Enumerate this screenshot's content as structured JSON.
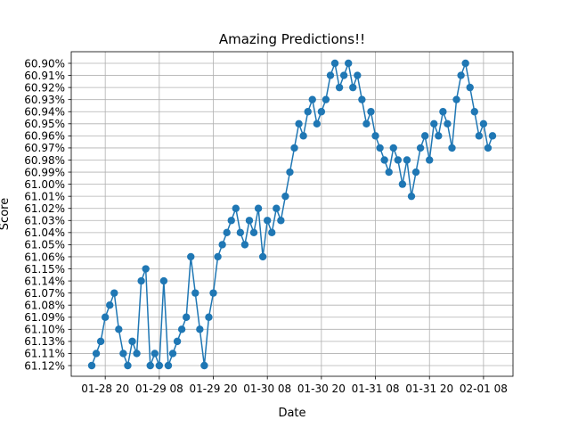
{
  "chart_data": {
    "type": "line",
    "title": "Amazing Predictions!!",
    "xlabel": "Date",
    "ylabel": "Score",
    "grid": true,
    "markers": "circle",
    "series_color": "#1f77b4",
    "y_categories": [
      "61.12%",
      "61.11%",
      "61.13%",
      "61.10%",
      "61.09%",
      "61.08%",
      "61.07%",
      "61.14%",
      "61.15%",
      "61.06%",
      "61.05%",
      "61.04%",
      "61.03%",
      "61.02%",
      "61.01%",
      "61.00%",
      "60.99%",
      "60.98%",
      "60.97%",
      "60.96%",
      "60.95%",
      "60.94%",
      "60.93%",
      "60.92%",
      "60.91%",
      "60.90%"
    ],
    "x_ticks": [
      "01-28 20",
      "01-29 08",
      "01-29 20",
      "01-30 08",
      "01-30 20",
      "01-31 08",
      "01-31 20",
      "02-01 08"
    ],
    "x_range": [
      "2020-01-28T17:00",
      "2020-02-01T10:00"
    ],
    "series": [
      {
        "values_by_hour": [
          [
            "2020-01-28T17:00",
            "61.12%"
          ],
          [
            "2020-01-28T18:00",
            "61.11%"
          ],
          [
            "2020-01-28T19:00",
            "61.13%"
          ],
          [
            "2020-01-28T20:00",
            "61.09%"
          ],
          [
            "2020-01-28T21:00",
            "61.08%"
          ],
          [
            "2020-01-28T22:00",
            "61.07%"
          ],
          [
            "2020-01-28T23:00",
            "61.10%"
          ],
          [
            "2020-01-29T00:00",
            "61.11%"
          ],
          [
            "2020-01-29T01:00",
            "61.12%"
          ],
          [
            "2020-01-29T02:00",
            "61.13%"
          ],
          [
            "2020-01-29T03:00",
            "61.11%"
          ],
          [
            "2020-01-29T04:00",
            "61.14%"
          ],
          [
            "2020-01-29T05:00",
            "61.15%"
          ],
          [
            "2020-01-29T06:00",
            "61.12%"
          ],
          [
            "2020-01-29T07:00",
            "61.11%"
          ],
          [
            "2020-01-29T08:00",
            "61.12%"
          ],
          [
            "2020-01-29T09:00",
            "61.14%"
          ],
          [
            "2020-01-29T10:00",
            "61.12%"
          ],
          [
            "2020-01-29T11:00",
            "61.11%"
          ],
          [
            "2020-01-29T12:00",
            "61.13%"
          ],
          [
            "2020-01-29T13:00",
            "61.10%"
          ],
          [
            "2020-01-29T14:00",
            "61.09%"
          ],
          [
            "2020-01-29T15:00",
            "61.06%"
          ],
          [
            "2020-01-29T16:00",
            "61.07%"
          ],
          [
            "2020-01-29T17:00",
            "61.10%"
          ],
          [
            "2020-01-29T18:00",
            "61.12%"
          ],
          [
            "2020-01-29T19:00",
            "61.09%"
          ],
          [
            "2020-01-29T20:00",
            "61.07%"
          ],
          [
            "2020-01-29T21:00",
            "61.06%"
          ],
          [
            "2020-01-29T22:00",
            "61.05%"
          ],
          [
            "2020-01-29T23:00",
            "61.04%"
          ],
          [
            "2020-01-30T00:00",
            "61.03%"
          ],
          [
            "2020-01-30T01:00",
            "61.02%"
          ],
          [
            "2020-01-30T02:00",
            "61.04%"
          ],
          [
            "2020-01-30T03:00",
            "61.05%"
          ],
          [
            "2020-01-30T04:00",
            "61.03%"
          ],
          [
            "2020-01-30T05:00",
            "61.04%"
          ],
          [
            "2020-01-30T06:00",
            "61.02%"
          ],
          [
            "2020-01-30T07:00",
            "61.06%"
          ],
          [
            "2020-01-30T08:00",
            "61.03%"
          ],
          [
            "2020-01-30T09:00",
            "61.04%"
          ],
          [
            "2020-01-30T10:00",
            "61.02%"
          ],
          [
            "2020-01-30T11:00",
            "61.03%"
          ],
          [
            "2020-01-30T12:00",
            "61.01%"
          ],
          [
            "2020-01-30T13:00",
            "60.99%"
          ],
          [
            "2020-01-30T14:00",
            "60.97%"
          ],
          [
            "2020-01-30T15:00",
            "60.95%"
          ],
          [
            "2020-01-30T16:00",
            "60.96%"
          ],
          [
            "2020-01-30T17:00",
            "60.94%"
          ],
          [
            "2020-01-30T18:00",
            "60.93%"
          ],
          [
            "2020-01-30T19:00",
            "60.95%"
          ],
          [
            "2020-01-30T20:00",
            "60.94%"
          ],
          [
            "2020-01-30T21:00",
            "60.93%"
          ],
          [
            "2020-01-30T22:00",
            "60.91%"
          ],
          [
            "2020-01-30T23:00",
            "60.90%"
          ],
          [
            "2020-01-31T00:00",
            "60.92%"
          ],
          [
            "2020-01-31T01:00",
            "60.91%"
          ],
          [
            "2020-01-31T02:00",
            "60.90%"
          ],
          [
            "2020-01-31T03:00",
            "60.92%"
          ],
          [
            "2020-01-31T04:00",
            "60.91%"
          ],
          [
            "2020-01-31T05:00",
            "60.93%"
          ],
          [
            "2020-01-31T06:00",
            "60.95%"
          ],
          [
            "2020-01-31T07:00",
            "60.94%"
          ],
          [
            "2020-01-31T08:00",
            "60.96%"
          ],
          [
            "2020-01-31T09:00",
            "60.97%"
          ],
          [
            "2020-01-31T10:00",
            "60.98%"
          ],
          [
            "2020-01-31T11:00",
            "60.99%"
          ],
          [
            "2020-01-31T12:00",
            "60.97%"
          ],
          [
            "2020-01-31T13:00",
            "60.98%"
          ],
          [
            "2020-01-31T14:00",
            "61.00%"
          ],
          [
            "2020-01-31T15:00",
            "60.98%"
          ],
          [
            "2020-01-31T16:00",
            "61.01%"
          ],
          [
            "2020-01-31T17:00",
            "60.99%"
          ],
          [
            "2020-01-31T18:00",
            "60.97%"
          ],
          [
            "2020-01-31T19:00",
            "60.96%"
          ],
          [
            "2020-01-31T20:00",
            "60.98%"
          ],
          [
            "2020-01-31T21:00",
            "60.95%"
          ],
          [
            "2020-01-31T22:00",
            "60.96%"
          ],
          [
            "2020-01-31T23:00",
            "60.94%"
          ],
          [
            "2020-02-01T00:00",
            "60.95%"
          ],
          [
            "2020-02-01T01:00",
            "60.97%"
          ],
          [
            "2020-02-01T02:00",
            "60.93%"
          ],
          [
            "2020-02-01T03:00",
            "60.91%"
          ],
          [
            "2020-02-01T04:00",
            "60.90%"
          ],
          [
            "2020-02-01T05:00",
            "60.92%"
          ],
          [
            "2020-02-01T06:00",
            "60.94%"
          ],
          [
            "2020-02-01T07:00",
            "60.96%"
          ],
          [
            "2020-02-01T08:00",
            "60.95%"
          ],
          [
            "2020-02-01T09:00",
            "60.97%"
          ],
          [
            "2020-02-01T10:00",
            "60.96%"
          ]
        ]
      }
    ]
  }
}
